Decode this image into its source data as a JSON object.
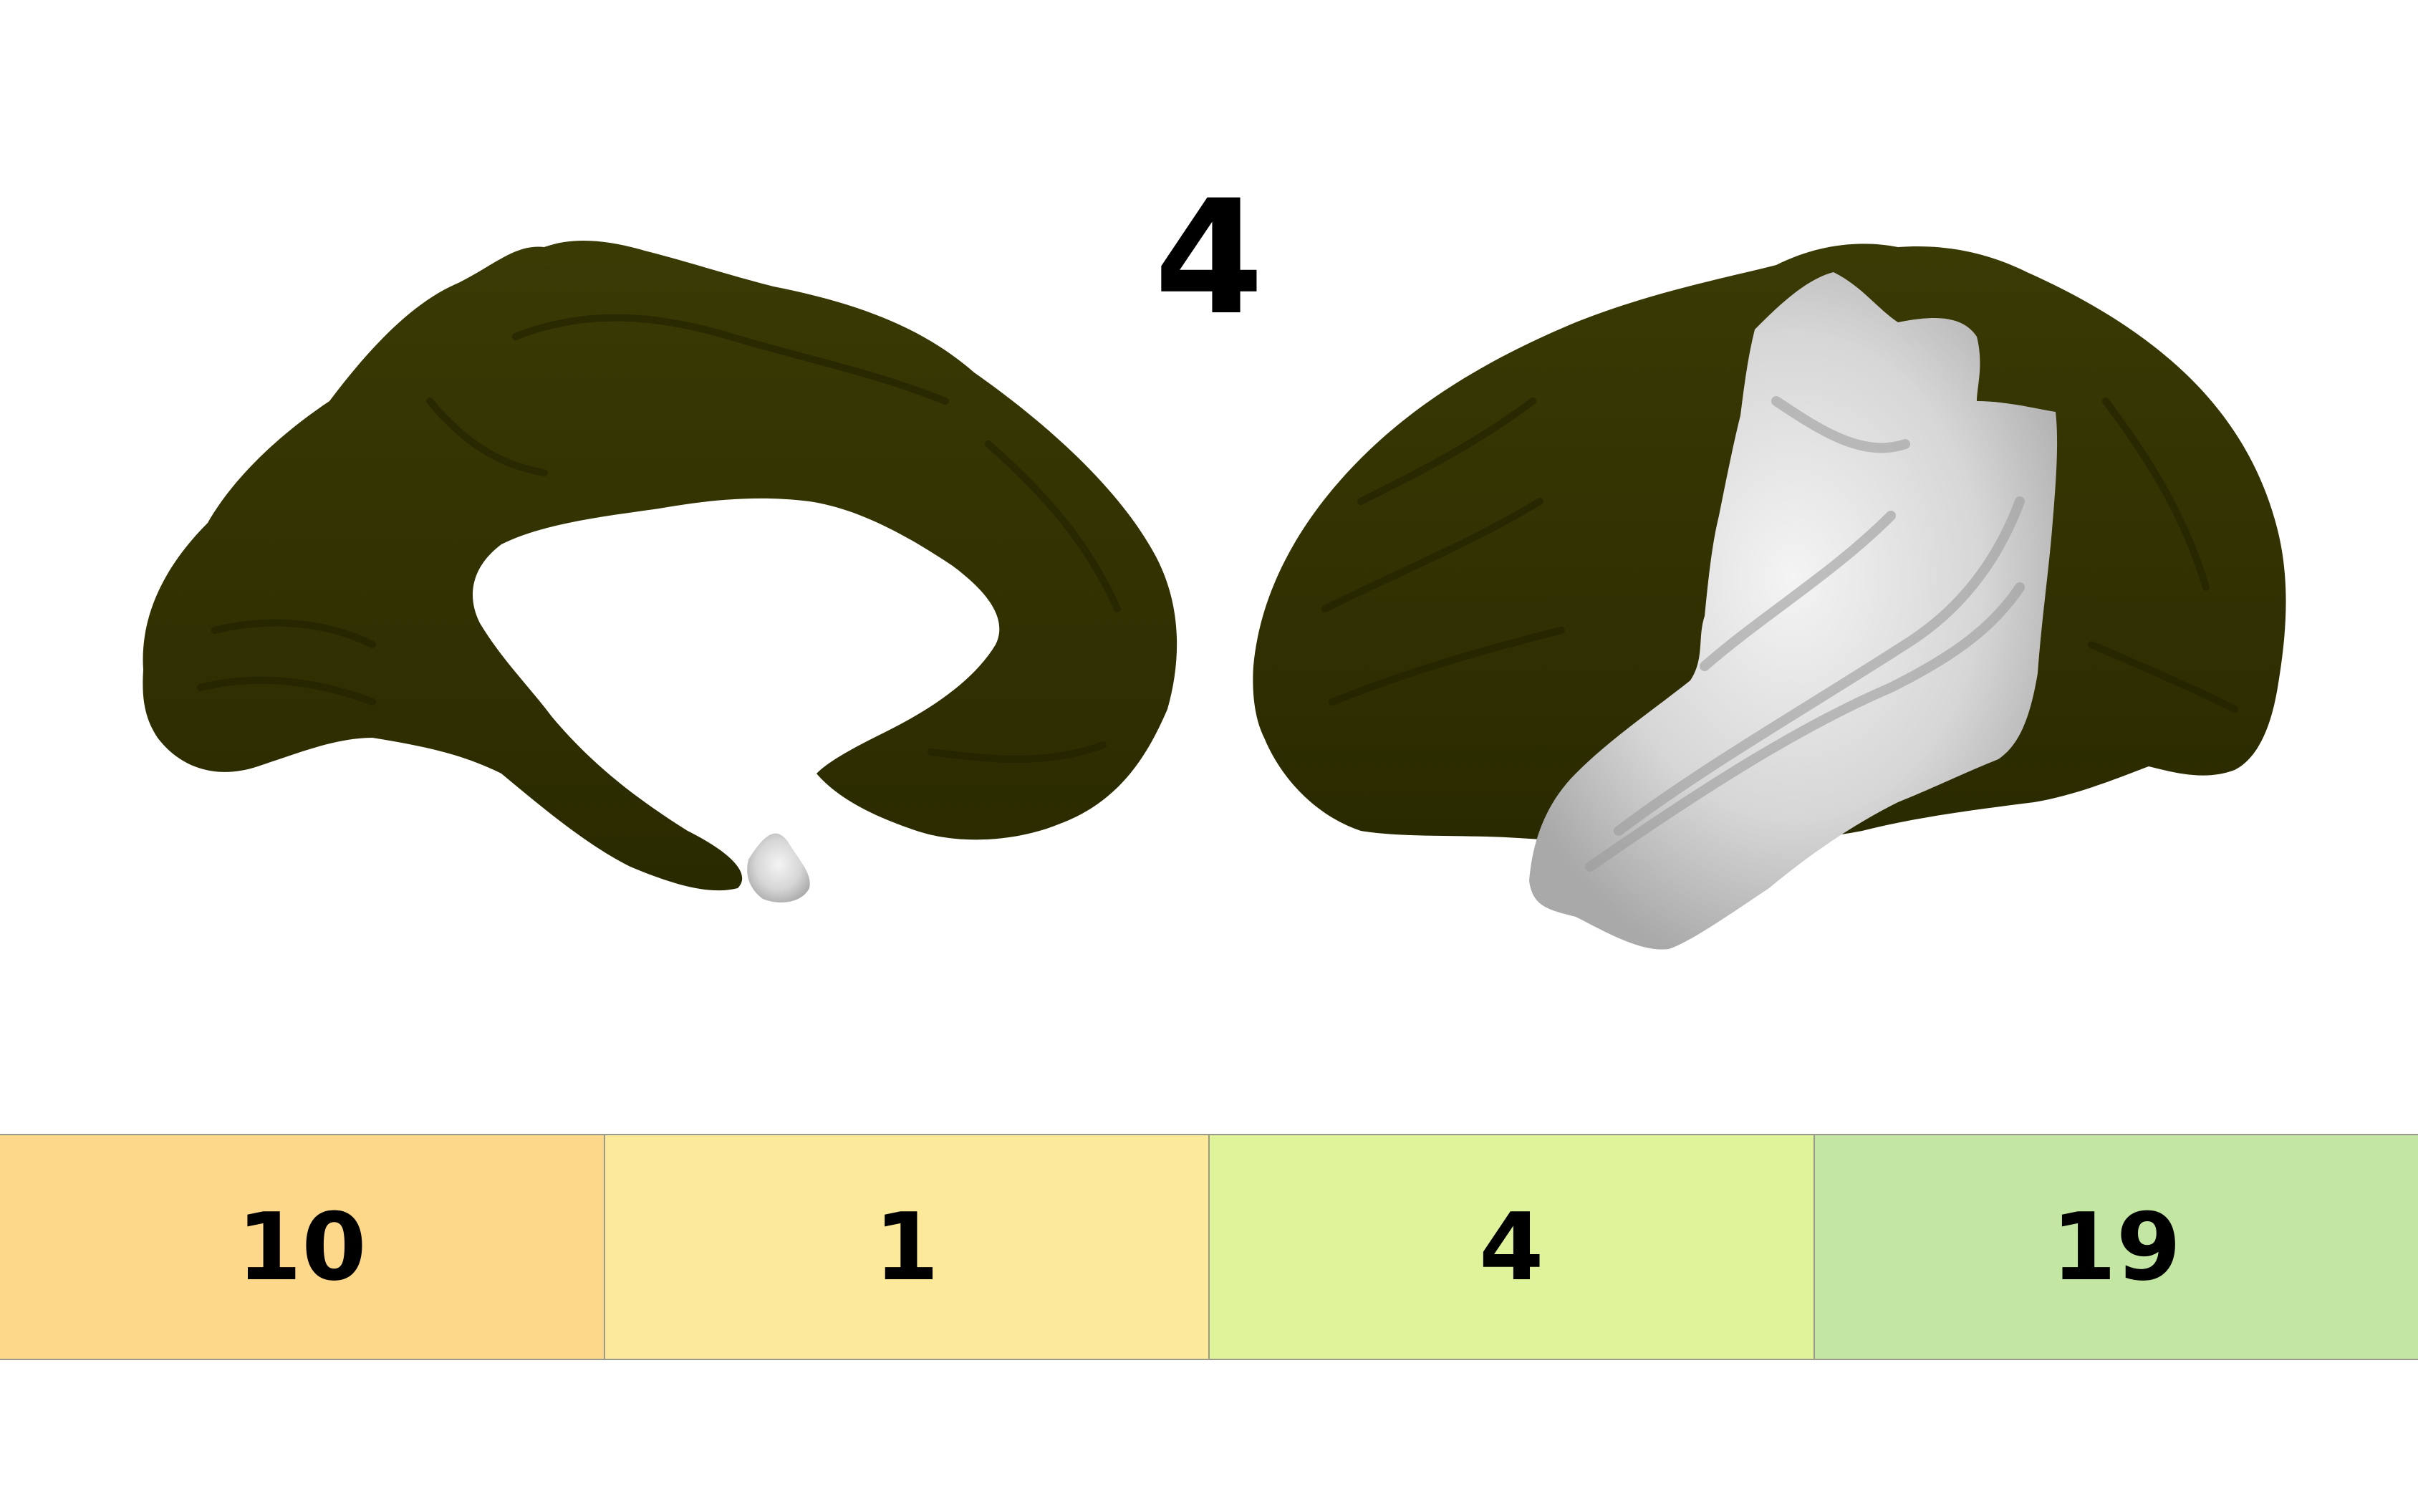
{
  "title": "4",
  "region_color": "#333300",
  "highlight_color": "#d9d9d9",
  "strip": {
    "cells": [
      {
        "label": "10",
        "color": "#fdd88a"
      },
      {
        "label": "1",
        "color": "#fde99a"
      },
      {
        "label": "4",
        "color": "#dff39a"
      },
      {
        "label": "19",
        "color": "#c3e7a2"
      }
    ]
  }
}
